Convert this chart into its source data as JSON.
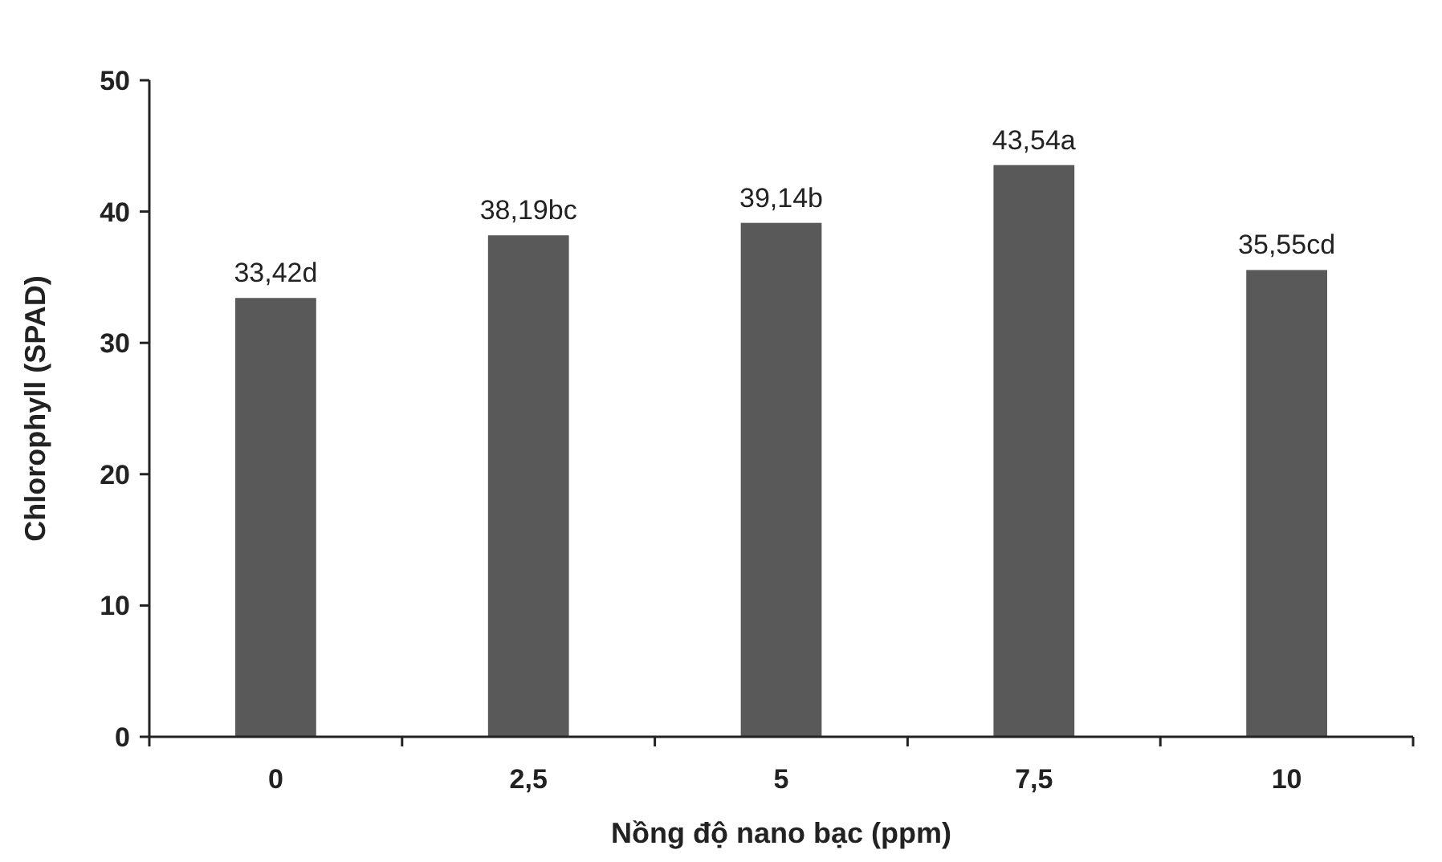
{
  "chart_data": {
    "type": "bar",
    "xlabel": "Nồng độ nano bạc (ppm)",
    "ylabel": "Chlorophyll (SPAD)",
    "categories": [
      "0",
      "2,5",
      "5",
      "7,5",
      "10"
    ],
    "values": [
      33.42,
      38.19,
      39.14,
      43.54,
      35.55
    ],
    "value_labels": [
      "33,42d",
      "38,19bc",
      "39,14b",
      "43,54a",
      "35,55cd"
    ],
    "color": "#595959",
    "ylim": [
      0,
      50
    ],
    "yticks": [
      0,
      10,
      20,
      30,
      40,
      50
    ],
    "grid": false
  }
}
